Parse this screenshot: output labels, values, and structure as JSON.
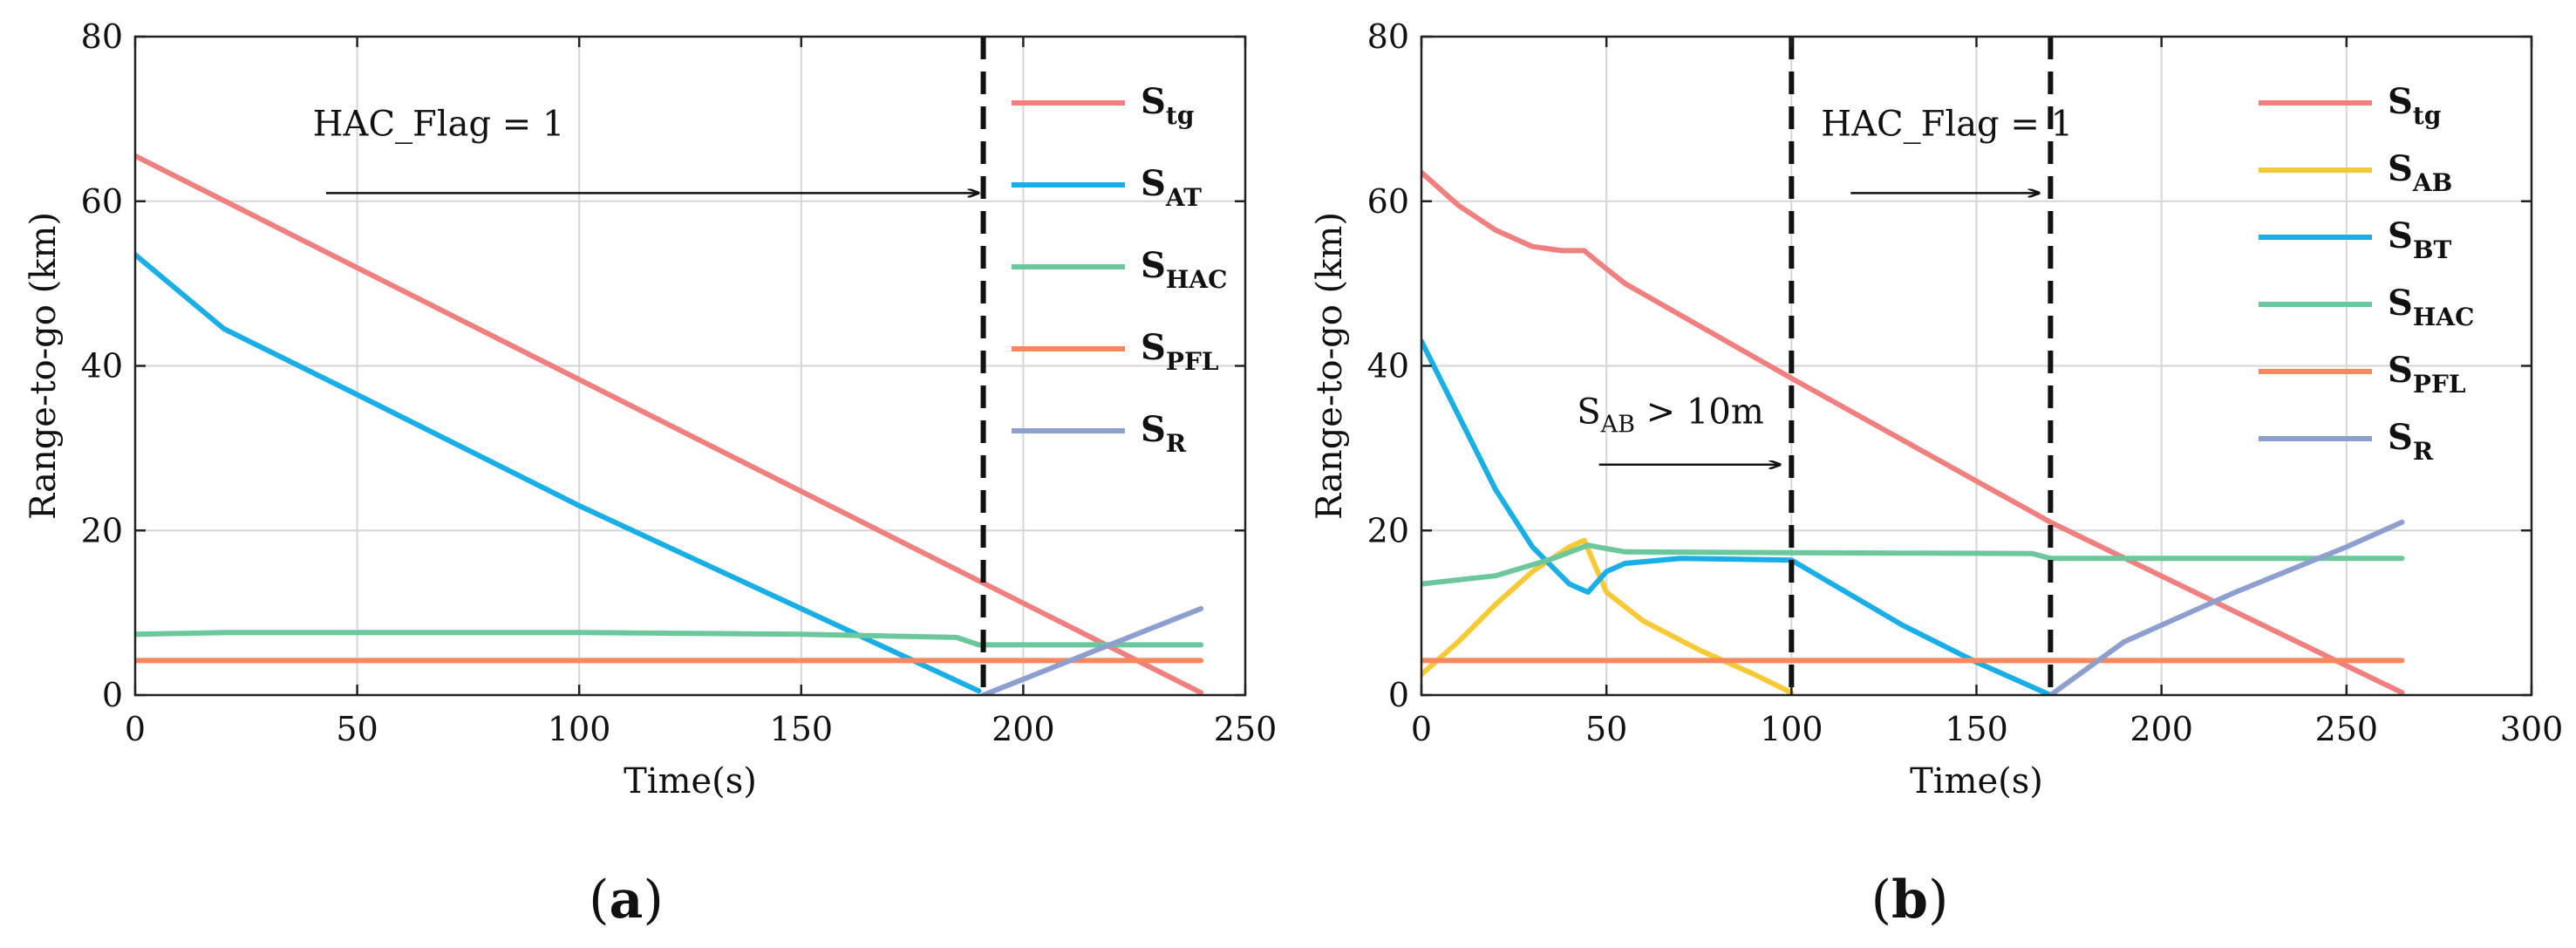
{
  "panels": [
    {
      "caption_letter": "a",
      "annotations": [
        {
          "text": "HAC_Flag = 1",
          "arrow_from_x": 43,
          "arrow_to_x": 190,
          "arrow_y": 61,
          "text_x": 40,
          "text_y": 68
        }
      ]
    },
    {
      "caption_letter": "b",
      "annotations": [
        {
          "main": "S",
          "sub": "AB",
          "rest": " > 10m",
          "arrow_from_x": 48,
          "arrow_to_x": 97,
          "arrow_y": 28,
          "text_x": 42,
          "text_y": 33
        },
        {
          "text": "HAC_Flag = 1",
          "arrow_from_x": 116,
          "arrow_to_x": 167,
          "arrow_y": 61,
          "text_x": 108,
          "text_y": 68
        }
      ]
    }
  ],
  "chart_data": [
    {
      "type": "line",
      "panel": "a",
      "xlabel": "Time(s)",
      "ylabel": "Range-to-go (km)",
      "xlim": [
        0,
        250
      ],
      "ylim": [
        0,
        80
      ],
      "xticks": [
        0,
        50,
        100,
        150,
        200,
        250
      ],
      "yticks": [
        0,
        20,
        40,
        60,
        80
      ],
      "grid": true,
      "legend_position": "top-right",
      "vlines": [
        191
      ],
      "series": [
        {
          "name": "S",
          "sub": "tg",
          "color": "#f07f7f",
          "x": [
            0,
            240
          ],
          "y": [
            65.5,
            0.3
          ]
        },
        {
          "name": "S",
          "sub": "AT",
          "color": "#1aaee6",
          "x": [
            0,
            20,
            50,
            100,
            150,
            190
          ],
          "y": [
            53.5,
            44.5,
            36.5,
            23.0,
            10.5,
            0.5
          ]
        },
        {
          "name": "S",
          "sub": "HAC",
          "color": "#6cc79c",
          "x": [
            0,
            20,
            100,
            150,
            185,
            190,
            240
          ],
          "y": [
            7.4,
            7.6,
            7.6,
            7.4,
            7.0,
            6.1,
            6.1
          ]
        },
        {
          "name": "S",
          "sub": "PFL",
          "color": "#f7875f",
          "x": [
            0,
            240
          ],
          "y": [
            4.2,
            4.2
          ]
        },
        {
          "name": "S",
          "sub": "R",
          "color": "#8d9fcf",
          "x": [
            191,
            240
          ],
          "y": [
            0,
            10.5
          ]
        }
      ]
    },
    {
      "type": "line",
      "panel": "b",
      "xlabel": "Time(s)",
      "ylabel": "Range-to-go (km)",
      "xlim": [
        0,
        300
      ],
      "ylim": [
        0,
        80
      ],
      "xticks": [
        0,
        50,
        100,
        150,
        200,
        250,
        300
      ],
      "yticks": [
        0,
        20,
        40,
        60,
        80
      ],
      "grid": true,
      "legend_position": "top-right",
      "vlines": [
        100,
        170
      ],
      "series": [
        {
          "name": "S",
          "sub": "tg",
          "color": "#f07f7f",
          "x": [
            0,
            10,
            20,
            30,
            38,
            44,
            48,
            55,
            100,
            170,
            265
          ],
          "y": [
            63.5,
            59.5,
            56.5,
            54.5,
            54.0,
            54.0,
            52.5,
            50.0,
            38.5,
            21.0,
            0.3
          ]
        },
        {
          "name": "S",
          "sub": "AB",
          "color": "#f7c936",
          "x": [
            0,
            10,
            20,
            30,
            40,
            44,
            50,
            60,
            75,
            90,
            100
          ],
          "y": [
            2.5,
            6.5,
            11.0,
            15.0,
            18.0,
            18.8,
            12.5,
            9.0,
            5.5,
            2.5,
            0.3
          ]
        },
        {
          "name": "S",
          "sub": "BT",
          "color": "#1aaee6",
          "x": [
            0,
            10,
            20,
            30,
            40,
            45,
            50,
            55,
            70,
            100,
            130,
            150,
            170
          ],
          "y": [
            43.0,
            34.0,
            25.0,
            18.0,
            13.5,
            12.5,
            15.0,
            16.0,
            16.6,
            16.4,
            8.5,
            4.0,
            0.0
          ]
        },
        {
          "name": "S",
          "sub": "HAC",
          "color": "#6cc79c",
          "x": [
            0,
            20,
            35,
            45,
            55,
            100,
            165,
            170,
            265
          ],
          "y": [
            13.5,
            14.5,
            16.5,
            18.2,
            17.4,
            17.3,
            17.2,
            16.6,
            16.6
          ]
        },
        {
          "name": "S",
          "sub": "PFL",
          "color": "#f7875f",
          "x": [
            0,
            265
          ],
          "y": [
            4.2,
            4.2
          ]
        },
        {
          "name": "S",
          "sub": "R",
          "color": "#8d9fcf",
          "x": [
            170,
            190,
            220,
            250,
            265
          ],
          "y": [
            0,
            6.5,
            12.5,
            18.0,
            21.0
          ]
        }
      ]
    }
  ]
}
